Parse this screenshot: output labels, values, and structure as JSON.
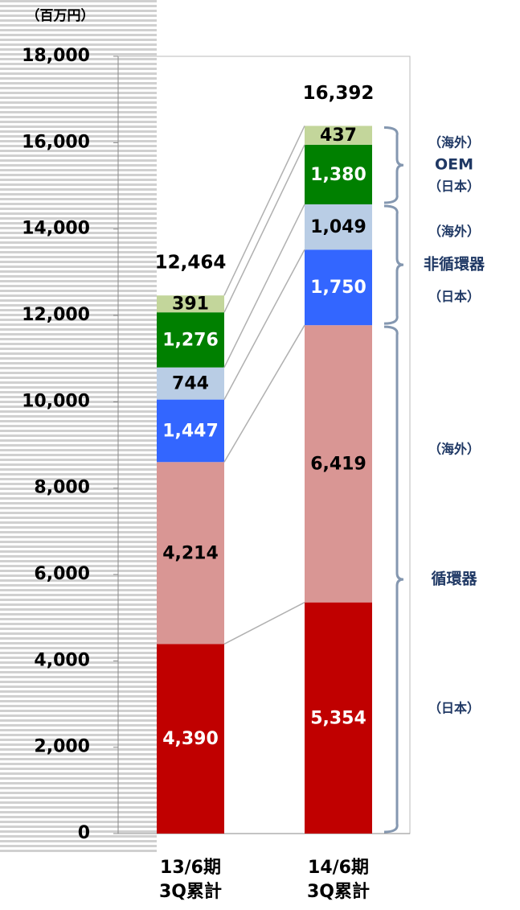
{
  "chart_data": {
    "type": "stacked_bar",
    "unit_label": "（百万円）",
    "categories": [
      "13/6期\n3Q累計",
      "14/6期\n3Q累計"
    ],
    "series": [
      {
        "name": "（日本）",
        "color": "#c00000",
        "label_color": "#ffffff",
        "values": [
          4390,
          5354
        ],
        "value_labels": [
          "4,390",
          "5,354"
        ]
      },
      {
        "name": "（海外）",
        "color": "#d99694",
        "label_color": "#000000",
        "values": [
          4214,
          6419
        ],
        "value_labels": [
          "4,214",
          "6,419"
        ]
      },
      {
        "name": "（日本）",
        "color": "#3366ff",
        "label_color": "#ffffff",
        "values": [
          1447,
          1750
        ],
        "value_labels": [
          "1,447",
          "1,750"
        ]
      },
      {
        "name": "（海外）",
        "color": "#b9cde5",
        "label_color": "#000000",
        "values": [
          744,
          1049
        ],
        "value_labels": [
          "744",
          "1,049"
        ]
      },
      {
        "name": "（日本）",
        "color": "#008000",
        "label_color": "#ffffff",
        "values": [
          1276,
          1380
        ],
        "value_labels": [
          "1,276",
          "1,380"
        ]
      },
      {
        "name": "（海外）",
        "color": "#c3d69b",
        "label_color": "#000000",
        "values": [
          391,
          437
        ],
        "value_labels": [
          "391",
          "437"
        ]
      }
    ],
    "groups": [
      {
        "name": "循環器"
      },
      {
        "name": "非循環器"
      },
      {
        "name": "OEM"
      }
    ],
    "totals": [
      12464,
      16392
    ],
    "total_labels": [
      "12,464",
      "16,392"
    ],
    "ylim": [
      0,
      18000
    ],
    "yticks": [
      0,
      {
        "value": 2000,
        "label": "2,000"
      },
      {
        "value": 4000,
        "label": "4,000"
      },
      {
        "value": 6000,
        "label": "6,000"
      },
      {
        "value": 8000,
        "label": "8,000"
      },
      {
        "value": 10000,
        "label": "10,000"
      },
      {
        "value": 12000,
        "label": "12,000"
      },
      {
        "value": 14000,
        "label": "14,000"
      },
      {
        "value": 16000,
        "label": "16,000"
      },
      {
        "value": 18000,
        "label": "18,000"
      }
    ]
  }
}
